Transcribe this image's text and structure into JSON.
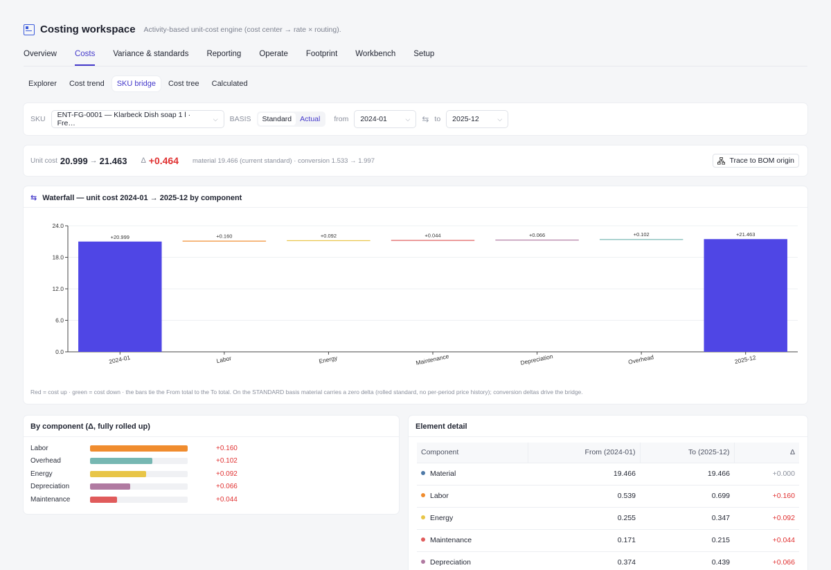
{
  "app": {
    "title": "Costing workspace",
    "subtitle": "Activity-based unit-cost engine (cost center → rate × routing)."
  },
  "main_tabs": [
    {
      "label": "Overview"
    },
    {
      "label": "Costs"
    },
    {
      "label": "Variance & standards"
    },
    {
      "label": "Reporting"
    },
    {
      "label": "Operate"
    },
    {
      "label": "Footprint"
    },
    {
      "label": "Workbench"
    },
    {
      "label": "Setup"
    }
  ],
  "main_tabs_active": "Costs",
  "sub_tabs": [
    {
      "label": "Explorer"
    },
    {
      "label": "Cost trend"
    },
    {
      "label": "SKU bridge"
    },
    {
      "label": "Cost tree"
    },
    {
      "label": "Calculated"
    }
  ],
  "sub_tabs_active": "SKU bridge",
  "filters": {
    "sku_label": "SKU",
    "sku_value": "ENT-FG-0001 — Klarbeck Dish soap 1 l · Fre…",
    "basis_label": "BASIS",
    "basis_options": [
      "Standard",
      "Actual"
    ],
    "basis_selected": "Standard",
    "from_label": "from",
    "from_value": "2024-01",
    "to_label": "to",
    "to_value": "2025-12"
  },
  "summary": {
    "unit_cost_label": "Unit cost",
    "from_cost": "20.999",
    "arrow": "→",
    "to_cost": "21.463",
    "delta_label": "Δ",
    "delta_value": "+0.464",
    "note": "material 19.466 (current standard) · conversion 1.533 → 1.997",
    "trace_button": "Trace to BOM origin"
  },
  "chart_title": "Waterfall — unit cost 2024-01 → 2025-12 by component",
  "chart_footnote": "Red = cost up · green = cost down · the bars tie the From total to the To total. On the STANDARD basis material carries a zero delta (rolled standard, no per-period price history); conversion deltas drive the bridge.",
  "colors": {
    "accent": "#4338ca",
    "total_bar": "#4f46e5",
    "up": "#e03131",
    "labor": "#f08c2e",
    "energy": "#e8c547",
    "maintenance": "#e05b5b",
    "depreciation": "#b07aa1",
    "overhead": "#76b7b2",
    "material": "#4e79a7"
  },
  "chart_data": {
    "type": "bar",
    "subtype": "waterfall",
    "categories": [
      "2024-01",
      "Labor",
      "Energy",
      "Maintenance",
      "Depreciation",
      "Overhead",
      "2025-12"
    ],
    "values": [
      20.999,
      0.16,
      0.092,
      0.044,
      0.066,
      0.102,
      21.463
    ],
    "labels": [
      "+20.999",
      "+0.160",
      "+0.092",
      "+0.044",
      "+0.066",
      "+0.102",
      "+21.463"
    ],
    "kinds": [
      "total",
      "delta",
      "delta",
      "delta",
      "delta",
      "delta",
      "total"
    ],
    "bar_colors": [
      "#4f46e5",
      "#f08c2e",
      "#e8c547",
      "#e05b5b",
      "#b07aa1",
      "#76b7b2",
      "#4f46e5"
    ],
    "ylim": [
      0,
      24
    ],
    "yticks": [
      "0.0",
      "6.0",
      "12.0",
      "18.0",
      "24.0"
    ],
    "ytick_values": [
      0,
      6,
      12,
      18,
      24
    ],
    "grid": true
  },
  "by_component": {
    "title": "By component (Δ, fully rolled up)",
    "items": [
      {
        "name": "Labor",
        "value": "+0.160",
        "fraction": 1.0,
        "color": "#f08c2e"
      },
      {
        "name": "Overhead",
        "value": "+0.102",
        "fraction": 0.6375,
        "color": "#76b7b2"
      },
      {
        "name": "Energy",
        "value": "+0.092",
        "fraction": 0.575,
        "color": "#e8c547"
      },
      {
        "name": "Depreciation",
        "value": "+0.066",
        "fraction": 0.4125,
        "color": "#b07aa1"
      },
      {
        "name": "Maintenance",
        "value": "+0.044",
        "fraction": 0.275,
        "color": "#e05b5b"
      }
    ]
  },
  "element_detail": {
    "title": "Element detail",
    "columns": [
      "Component",
      "From (2024-01)",
      "To (2025-12)",
      "Δ"
    ],
    "rows": [
      {
        "component": "Material",
        "from": "19.466",
        "to": "19.466",
        "delta": "+0.000",
        "color": "#4e79a7"
      },
      {
        "component": "Labor",
        "from": "0.539",
        "to": "0.699",
        "delta": "+0.160",
        "color": "#f08c2e"
      },
      {
        "component": "Energy",
        "from": "0.255",
        "to": "0.347",
        "delta": "+0.092",
        "color": "#e8c547"
      },
      {
        "component": "Maintenance",
        "from": "0.171",
        "to": "0.215",
        "delta": "+0.044",
        "color": "#e05b5b"
      },
      {
        "component": "Depreciation",
        "from": "0.374",
        "to": "0.439",
        "delta": "+0.066",
        "color": "#b07aa1"
      }
    ]
  }
}
